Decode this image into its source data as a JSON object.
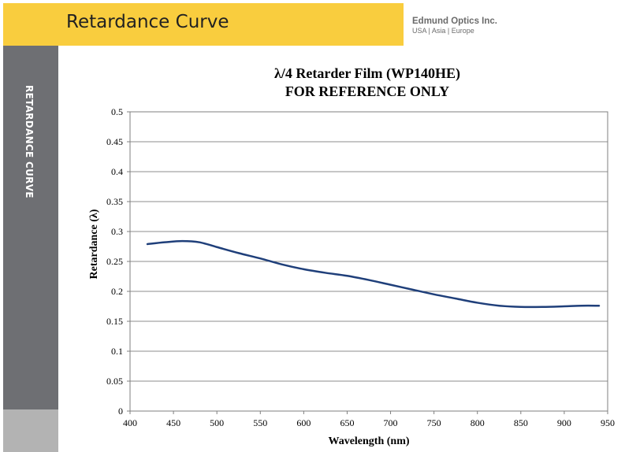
{
  "header": {
    "title": "Retardance Curve",
    "company_name": "Edmund Optics Inc.",
    "company_regions": "USA | Asia | Europe",
    "accent_color": "#f9cd3e"
  },
  "sidebar": {
    "label": "RETARDANCE CURVE",
    "color": "#6e6f73"
  },
  "chart_data": {
    "type": "line",
    "title_lines": [
      "λ/4 Retarder Film (WP140HE)",
      "FOR REFERENCE ONLY"
    ],
    "xlabel": "Wavelength (nm)",
    "ylabel": "Retardance (λ)",
    "xlim": [
      400,
      950
    ],
    "ylim": [
      0,
      0.5
    ],
    "x_ticks": [
      "400",
      "450",
      "500",
      "550",
      "600",
      "650",
      "700",
      "750",
      "800",
      "850",
      "900",
      "950"
    ],
    "y_ticks": [
      "0",
      "0.05",
      "0.1",
      "0.15",
      "0.2",
      "0.25",
      "0.3",
      "0.35",
      "0.4",
      "0.45",
      "0.5"
    ],
    "grid": "horizontal",
    "series_color": "#1f3f7a",
    "series": [
      {
        "x": [
          420,
          440,
          460,
          480,
          500,
          525,
          550,
          575,
          600,
          625,
          650,
          675,
          700,
          725,
          750,
          775,
          800,
          825,
          850,
          875,
          900,
          920,
          940
        ],
        "y": [
          0.279,
          0.282,
          0.284,
          0.282,
          0.274,
          0.264,
          0.255,
          0.245,
          0.237,
          0.231,
          0.226,
          0.219,
          0.211,
          0.203,
          0.195,
          0.188,
          0.181,
          0.176,
          0.174,
          0.174,
          0.175,
          0.176,
          0.176
        ]
      }
    ]
  }
}
